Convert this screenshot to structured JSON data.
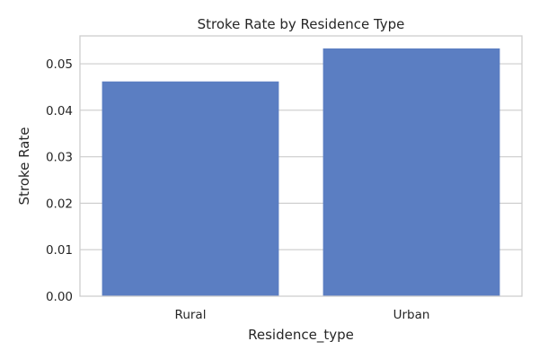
{
  "chart_data": {
    "type": "bar",
    "title": "Stroke Rate by Residence Type",
    "xlabel": "Residence_type",
    "ylabel": "Stroke Rate",
    "categories": [
      "Rural",
      "Urban"
    ],
    "values": [
      0.0462,
      0.0533
    ],
    "ylim": [
      0,
      0.056
    ],
    "yticks": [
      "0.00",
      "0.01",
      "0.02",
      "0.03",
      "0.04",
      "0.05"
    ],
    "grid": true,
    "bar_color": "#5b7ec2",
    "grid_color": "#cccccc",
    "spine_color": "#cccccc"
  }
}
